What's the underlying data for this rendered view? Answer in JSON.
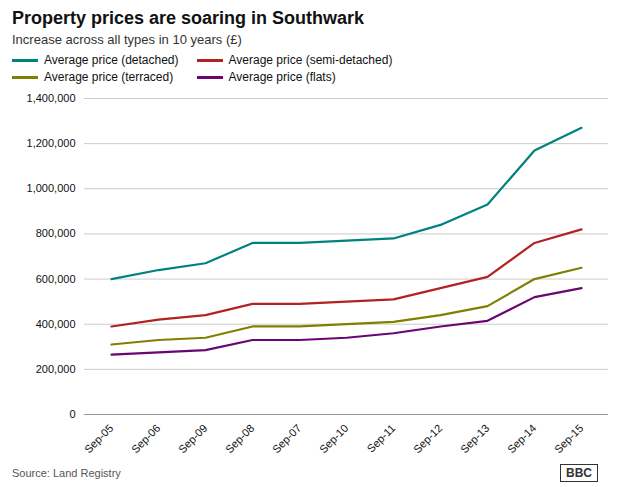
{
  "chart_data": {
    "type": "line",
    "title": "Property prices are soaring in Southwark",
    "subtitle": "Increase across all types in 10 years (£)",
    "annotations": [
      "Source: Land Registry",
      "BBC"
    ],
    "categories": [
      "Sep-05",
      "Sep-06",
      "Sep-09",
      "Sep-08",
      "Sep-07",
      "Sep-10",
      "Sep-11",
      "Sep-12",
      "Sep-13",
      "Sep-14",
      "Sep-15"
    ],
    "series": [
      {
        "name": "Average price (detached)",
        "color": "#00827F",
        "values": [
          600000,
          640000,
          670000,
          760000,
          760000,
          770000,
          780000,
          840000,
          930000,
          1170000,
          1270000
        ]
      },
      {
        "name": "Average price (semi-detached)",
        "color": "#B22222",
        "values": [
          390000,
          420000,
          440000,
          490000,
          490000,
          500000,
          510000,
          560000,
          610000,
          760000,
          820000
        ]
      },
      {
        "name": "Average price (terraced)",
        "color": "#808000",
        "values": [
          310000,
          330000,
          340000,
          390000,
          390000,
          400000,
          410000,
          440000,
          480000,
          600000,
          650000
        ]
      },
      {
        "name": "Average price (flats)",
        "color": "#6A0572",
        "values": [
          265000,
          275000,
          285000,
          330000,
          330000,
          340000,
          360000,
          390000,
          415000,
          520000,
          560000
        ]
      }
    ],
    "ylim": [
      0,
      1400000
    ],
    "yticks": [
      0,
      {
        "value": 200000,
        "label": "200,000"
      },
      {
        "value": 400000,
        "label": "400,000"
      },
      {
        "value": 600000,
        "label": "600,000"
      },
      {
        "value": 800000,
        "label": "800,000"
      },
      {
        "value": 1000000,
        "label": "1,000,000"
      },
      {
        "value": 1200000,
        "label": "1,200,000"
      },
      {
        "value": 1400000,
        "label": "1,400,000"
      }
    ],
    "grid": true,
    "legend": "upper left"
  }
}
